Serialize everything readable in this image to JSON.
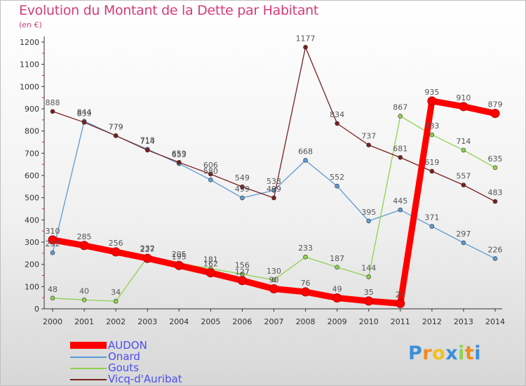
{
  "chart_data": {
    "type": "line",
    "title": "Evolution du Montant de la Dette par Habitant",
    "subtitle": "(en €)",
    "x": [
      2000,
      2001,
      2002,
      2003,
      2004,
      2005,
      2006,
      2007,
      2008,
      2009,
      2010,
      2011,
      2012,
      2013,
      2014
    ],
    "ylim": [
      0,
      1200
    ],
    "yticks": [
      0,
      100,
      200,
      300,
      400,
      500,
      600,
      700,
      800,
      900,
      1000,
      1100,
      1200
    ],
    "grid": false,
    "legend_position": "bottom-left",
    "series": [
      {
        "name": "AUDON",
        "color": "#ff0000",
        "values": [
          310,
          285,
          256,
          227,
          195,
          162,
          127,
          90,
          76,
          49,
          35,
          24,
          935,
          910,
          879
        ]
      },
      {
        "name": "Onard",
        "color": "#5b9bd5",
        "values": [
          252,
          844,
          779,
          718,
          653,
          580,
          499,
          533,
          668,
          552,
          395,
          445,
          371,
          297,
          226
        ]
      },
      {
        "name": "Gouts",
        "color": "#8fd14f",
        "values": [
          48,
          40,
          34,
          232,
          205,
          181,
          156,
          130,
          233,
          187,
          144,
          867,
          783,
          714,
          635
        ]
      },
      {
        "name": "Vicq-d'Auribat",
        "color": "#7a1f1f",
        "values": [
          888,
          839,
          779,
          714,
          659,
          606,
          549,
          499,
          1177,
          834,
          737,
          681,
          619,
          557,
          483
        ]
      }
    ]
  },
  "logo": {
    "letters": [
      "P",
      "r",
      "o",
      "x",
      "i",
      "t",
      "i"
    ]
  }
}
